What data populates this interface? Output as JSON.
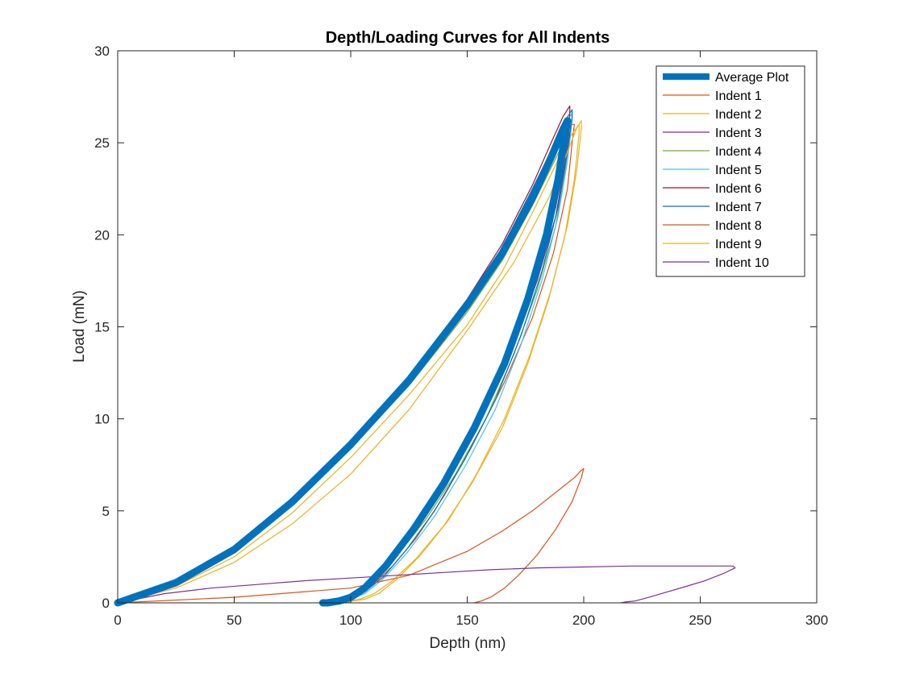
{
  "chart_data": {
    "type": "line",
    "title": "Depth/Loading Curves for All Indents",
    "xlabel": "Depth (nm)",
    "ylabel": "Load (mN)",
    "xlim": [
      0,
      300
    ],
    "ylim": [
      0,
      30
    ],
    "xticks": [
      "0",
      "50",
      "100",
      "150",
      "200",
      "250",
      "300"
    ],
    "yticks": [
      "0",
      "5",
      "10",
      "15",
      "20",
      "25",
      "30"
    ],
    "grid": false,
    "legend_position": "top-right",
    "series": [
      {
        "name": "Average Plot",
        "color": "#0072BD",
        "thick": true,
        "x": [
          0,
          25,
          50,
          75,
          100,
          125,
          150,
          165,
          178,
          186,
          191,
          193,
          192,
          189,
          184,
          176,
          166,
          153,
          140,
          127,
          115,
          106,
          100,
          95,
          90,
          88
        ],
        "y": [
          0,
          1.1,
          2.9,
          5.5,
          8.6,
          12.1,
          16.2,
          19.0,
          22.0,
          24.2,
          25.7,
          26.2,
          25.5,
          23.0,
          20.0,
          16.5,
          13.0,
          9.5,
          6.5,
          4.0,
          2.0,
          0.8,
          0.3,
          0.1,
          0.0,
          0.0
        ]
      },
      {
        "name": "Indent 1",
        "color": "#D95319",
        "thick": false,
        "x": [
          0,
          25,
          50,
          75,
          100,
          125,
          150,
          165,
          178,
          186,
          192,
          195,
          196,
          195,
          193,
          187,
          178,
          166,
          152,
          140,
          128,
          118,
          108,
          102,
          97,
          93
        ],
        "y": [
          0,
          1.1,
          2.9,
          5.4,
          8.5,
          12.0,
          16.0,
          18.8,
          22.0,
          24.3,
          25.5,
          26.0,
          26.0,
          25.0,
          22.5,
          19.0,
          15.5,
          12.0,
          8.5,
          5.8,
          3.5,
          2.0,
          0.8,
          0.3,
          0.1,
          0.0
        ]
      },
      {
        "name": "Indent 2",
        "color": "#EDB120",
        "thick": false,
        "x": [
          0,
          25,
          50,
          75,
          100,
          125,
          150,
          165,
          178,
          188,
          194,
          198,
          198,
          196,
          192,
          185,
          176,
          165,
          152,
          140,
          128,
          118,
          110,
          104,
          99,
          96
        ],
        "y": [
          0,
          0.9,
          2.5,
          4.9,
          7.9,
          11.3,
          15.1,
          18.0,
          21.2,
          23.8,
          25.3,
          26.0,
          25.5,
          23.0,
          20.0,
          16.5,
          13.0,
          9.5,
          6.5,
          4.2,
          2.4,
          1.2,
          0.5,
          0.2,
          0.1,
          0.0
        ]
      },
      {
        "name": "Indent 3",
        "color": "#7E2F8E",
        "thick": false,
        "x": [
          0,
          25,
          50,
          75,
          100,
          125,
          150,
          165,
          178,
          187,
          192,
          194,
          194,
          192,
          188,
          180,
          170,
          158,
          145,
          132,
          120,
          110,
          103,
          98,
          94,
          91
        ],
        "y": [
          0,
          1.1,
          2.9,
          5.5,
          8.6,
          12.1,
          16.2,
          19.1,
          22.2,
          24.4,
          25.6,
          26.2,
          25.8,
          24.0,
          21.0,
          17.5,
          14.0,
          10.5,
          7.5,
          4.8,
          2.8,
          1.4,
          0.6,
          0.2,
          0.1,
          0.0
        ]
      },
      {
        "name": "Indent 4",
        "color": "#77AC30",
        "thick": false,
        "x": [
          0,
          25,
          50,
          75,
          100,
          125,
          150,
          165,
          178,
          187,
          192,
          194,
          194,
          192,
          188,
          180,
          170,
          158,
          145,
          132,
          120,
          110,
          103,
          98,
          94,
          91
        ],
        "y": [
          0,
          1.0,
          2.8,
          5.3,
          8.4,
          11.8,
          15.8,
          18.6,
          21.6,
          23.9,
          25.2,
          25.8,
          25.5,
          23.5,
          20.5,
          17.0,
          13.5,
          10.0,
          7.0,
          4.5,
          2.6,
          1.3,
          0.5,
          0.2,
          0.1,
          0.0
        ]
      },
      {
        "name": "Indent 5",
        "color": "#4DBEEE",
        "thick": false,
        "x": [
          0,
          25,
          50,
          75,
          100,
          125,
          150,
          165,
          178,
          187,
          192,
          195,
          195,
          193,
          189,
          182,
          173,
          162,
          149,
          136,
          124,
          114,
          106,
          100,
          96,
          93
        ],
        "y": [
          0,
          1.1,
          2.9,
          5.5,
          8.6,
          12.2,
          16.3,
          19.2,
          22.3,
          24.6,
          26.0,
          26.6,
          26.2,
          24.0,
          21.0,
          17.5,
          14.0,
          10.5,
          7.4,
          4.7,
          2.7,
          1.3,
          0.5,
          0.2,
          0.1,
          0.0
        ]
      },
      {
        "name": "Indent 6",
        "color": "#A2142F",
        "thick": false,
        "x": [
          0,
          25,
          50,
          75,
          100,
          125,
          150,
          165,
          178,
          186,
          191,
          194,
          194,
          192,
          188,
          180,
          170,
          158,
          145,
          132,
          120,
          110,
          103,
          98,
          94,
          91
        ],
        "y": [
          0,
          1.2,
          3.0,
          5.6,
          8.8,
          12.3,
          16.5,
          19.5,
          22.7,
          25.0,
          26.4,
          27.0,
          26.5,
          24.5,
          21.5,
          18.0,
          14.5,
          11.0,
          7.8,
          5.0,
          2.9,
          1.4,
          0.6,
          0.2,
          0.1,
          0.0
        ]
      },
      {
        "name": "Indent 7",
        "color": "#0072BD",
        "thick": false,
        "x": [
          0,
          25,
          50,
          75,
          100,
          125,
          150,
          165,
          178,
          187,
          192,
          195,
          195,
          193,
          189,
          182,
          173,
          162,
          149,
          136,
          124,
          114,
          106,
          100,
          96,
          93
        ],
        "y": [
          0,
          1.1,
          2.9,
          5.5,
          8.7,
          12.2,
          16.4,
          19.3,
          22.5,
          24.8,
          26.2,
          26.8,
          26.4,
          24.5,
          21.5,
          18.0,
          14.5,
          11.0,
          7.8,
          5.0,
          2.9,
          1.4,
          0.6,
          0.2,
          0.1,
          0.0
        ]
      },
      {
        "name": "Indent 8",
        "color": "#D95319",
        "thick": false,
        "x": [
          0,
          50,
          100,
          125,
          150,
          165,
          178,
          188,
          196,
          199,
          200,
          200,
          199,
          195,
          188,
          180,
          172,
          166,
          160,
          156,
          153
        ],
        "y": [
          0,
          0.3,
          0.8,
          1.5,
          2.8,
          3.9,
          5.0,
          6.0,
          6.8,
          7.2,
          7.3,
          7.3,
          6.8,
          5.5,
          4.0,
          2.6,
          1.5,
          0.8,
          0.3,
          0.1,
          0.0
        ]
      },
      {
        "name": "Indent 9",
        "color": "#EDB120",
        "thick": false,
        "x": [
          0,
          25,
          50,
          75,
          100,
          125,
          150,
          170,
          185,
          193,
          197,
          199,
          199,
          197,
          193,
          186,
          177,
          166,
          154,
          142,
          130,
          120,
          112,
          106,
          101,
          98
        ],
        "y": [
          0,
          0.8,
          2.2,
          4.3,
          7.0,
          10.5,
          14.8,
          18.5,
          22.0,
          24.5,
          25.8,
          26.2,
          25.8,
          23.5,
          20.5,
          17.0,
          13.5,
          10.0,
          7.0,
          4.5,
          2.6,
          1.3,
          0.5,
          0.2,
          0.1,
          0.0
        ]
      },
      {
        "name": "Indent 10",
        "color": "#7E2F8E",
        "thick": false,
        "x": [
          0,
          20,
          40,
          60,
          80,
          100,
          120,
          140,
          160,
          180,
          200,
          220,
          240,
          255,
          262,
          264,
          265,
          260,
          252,
          244,
          236,
          228,
          222,
          218,
          216
        ],
        "y": [
          0,
          0.5,
          0.8,
          1.0,
          1.2,
          1.35,
          1.5,
          1.65,
          1.8,
          1.9,
          1.95,
          2.0,
          2.0,
          2.0,
          2.0,
          2.0,
          1.9,
          1.6,
          1.2,
          0.9,
          0.6,
          0.3,
          0.1,
          0.05,
          0.0
        ]
      }
    ]
  }
}
